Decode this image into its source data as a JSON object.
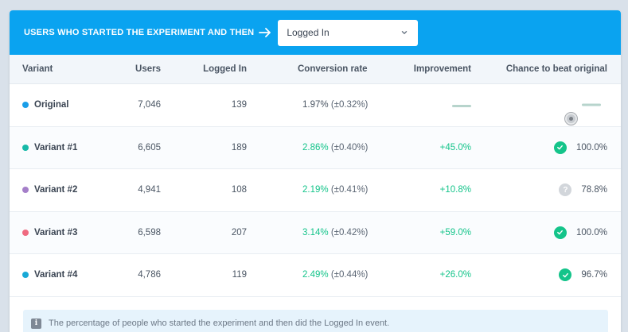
{
  "banner": {
    "title": "USERS WHO STARTED THE EXPERIMENT AND THEN",
    "event_selected": "Logged In"
  },
  "columns": {
    "variant": "Variant",
    "users": "Users",
    "logged_in": "Logged In",
    "conversion_rate": "Conversion rate",
    "improvement": "Improvement",
    "chance": "Chance to beat original"
  },
  "rows": [
    {
      "name": "Original",
      "dot_color": "#1a9ee8",
      "users": "7,046",
      "logged_in": "139",
      "conv": "1.97%",
      "conv_dev": "(±0.32%)",
      "improvement": "",
      "chance": "",
      "status": "none"
    },
    {
      "name": "Variant #1",
      "dot_color": "#17b9a8",
      "users": "6,605",
      "logged_in": "189",
      "conv": "2.86%",
      "conv_dev": "(±0.40%)",
      "improvement": "+45.0%",
      "chance": "100.0%",
      "status": "check"
    },
    {
      "name": "Variant #2",
      "dot_color": "#a57fc9",
      "users": "4,941",
      "logged_in": "108",
      "conv": "2.19%",
      "conv_dev": "(±0.41%)",
      "improvement": "+10.8%",
      "chance": "78.8%",
      "status": "question"
    },
    {
      "name": "Variant #3",
      "dot_color": "#ef6a80",
      "users": "6,598",
      "logged_in": "207",
      "conv": "3.14%",
      "conv_dev": "(±0.42%)",
      "improvement": "+59.0%",
      "chance": "100.0%",
      "status": "check"
    },
    {
      "name": "Variant #4",
      "dot_color": "#19a9d6",
      "users": "4,786",
      "logged_in": "119",
      "conv": "2.49%",
      "conv_dev": "(±0.44%)",
      "improvement": "+26.0%",
      "chance": "96.7%",
      "status": "check"
    }
  ],
  "footer": {
    "note": "The percentage of people who started the experiment and then did the Logged In event."
  },
  "colors": {
    "banner": "#0aa3f0",
    "positive": "#14c48a"
  }
}
